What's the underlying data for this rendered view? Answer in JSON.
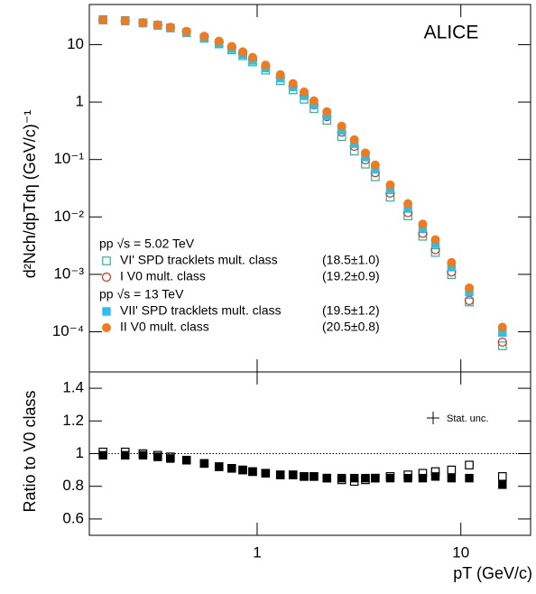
{
  "chart_data": [
    {
      "type": "scatter",
      "annotation": "ALICE",
      "y_label": "d²Nch/dpTdη (GeV/c)⁻¹",
      "xscale": "log",
      "yscale": "log",
      "xlim": [
        0.15,
        22
      ],
      "ylim": [
        2e-05,
        50
      ],
      "yticks": [
        10,
        1,
        {
          "value": 0.1,
          "label": "10⁻¹"
        },
        {
          "value": 0.01,
          "label": "10⁻²"
        },
        {
          "value": 0.001,
          "label": "10⁻³"
        },
        {
          "value": 0.0001,
          "label": "10⁻⁴"
        }
      ],
      "legend_groups": [
        "pp √s = 5.02 TeV",
        "pp √s = 13 TeV"
      ],
      "x": [
        0.175,
        0.225,
        0.275,
        0.325,
        0.375,
        0.45,
        0.55,
        0.65,
        0.75,
        0.85,
        0.95,
        1.1,
        1.3,
        1.5,
        1.7,
        1.9,
        2.2,
        2.6,
        3.0,
        3.4,
        3.8,
        4.5,
        5.5,
        6.5,
        7.5,
        9,
        11,
        16
      ],
      "series": [
        {
          "name": "VI' SPD tracklets mult. class",
          "multiplicity": "(18.5±1.0)",
          "color": "#26b894",
          "marker": "open-square",
          "values": [
            27.3,
            26.3,
            24,
            21.8,
            19.6,
            16.1,
            12.9,
            10.3,
            8.1,
            6.4,
            5.0,
            3.6,
            2.35,
            1.63,
            1.12,
            0.77,
            0.48,
            0.25,
            0.14,
            0.083,
            0.05,
            0.022,
            0.0104,
            0.0046,
            0.0024,
            0.00099,
            0.00033,
            5.7e-05
          ]
        },
        {
          "name": "I V0 mult. class",
          "multiplicity": "(19.2±0.9)",
          "color": "#e8261a",
          "marker": "open-circle",
          "values": [
            27,
            26,
            24,
            22,
            20,
            16.8,
            13.7,
            11.2,
            8.9,
            7.1,
            5.6,
            4.1,
            2.7,
            1.87,
            1.3,
            0.89,
            0.56,
            0.3,
            0.17,
            0.099,
            0.059,
            0.026,
            0.0119,
            0.0052,
            0.0027,
            0.0011,
            0.00035,
            6.6e-05
          ]
        },
        {
          "name": "VII' SPD tracklets mult. class",
          "multiplicity": "(19.5±1.2)",
          "color": "#29c0ee",
          "marker": "filled-square",
          "values": [
            26.7,
            25.7,
            23.8,
            21.6,
            19.4,
            16.3,
            13.2,
            10.6,
            8.5,
            6.75,
            5.3,
            3.9,
            2.6,
            1.83,
            1.29,
            0.9,
            0.58,
            0.32,
            0.19,
            0.11,
            0.068,
            0.031,
            0.0145,
            0.0064,
            0.0034,
            0.00136,
            0.00049,
            9.7e-05
          ]
        },
        {
          "name": "II V0 mult. class",
          "multiplicity": "(20.5±0.8)",
          "color": "#f07a1e",
          "marker": "filled-circle",
          "values": [
            27,
            26,
            24,
            22,
            20,
            17,
            14,
            11.5,
            9.3,
            7.5,
            6.0,
            4.4,
            3.0,
            2.1,
            1.5,
            1.05,
            0.68,
            0.38,
            0.22,
            0.13,
            0.08,
            0.036,
            0.017,
            0.0075,
            0.004,
            0.0016,
            0.00058,
            0.00012
          ]
        }
      ]
    },
    {
      "type": "scatter",
      "y_label": "Ratio to V0 class",
      "x_label": "pT (GeV/c)",
      "annotation": "Stat. unc.",
      "xscale": "log",
      "xlim": [
        0.15,
        22
      ],
      "ylim": [
        0.5,
        1.5
      ],
      "xticks": [
        1,
        10
      ],
      "yticks": [
        0.6,
        0.8,
        1,
        1.2,
        1.4
      ],
      "reference_line": 1,
      "x": [
        0.175,
        0.225,
        0.275,
        0.325,
        0.375,
        0.45,
        0.55,
        0.65,
        0.75,
        0.85,
        0.95,
        1.1,
        1.3,
        1.5,
        1.7,
        1.9,
        2.2,
        2.6,
        3.0,
        3.4,
        3.8,
        4.5,
        5.5,
        6.5,
        7.5,
        9,
        11,
        16
      ],
      "series": [
        {
          "color": "#000000",
          "marker": "open-square",
          "values": [
            1.01,
            1.01,
            1.0,
            0.99,
            0.98,
            0.96,
            0.94,
            0.92,
            0.91,
            0.9,
            0.89,
            0.88,
            0.87,
            0.87,
            0.86,
            0.86,
            0.85,
            0.84,
            0.83,
            0.84,
            0.85,
            0.86,
            0.87,
            0.88,
            0.89,
            0.9,
            0.93,
            0.86
          ]
        },
        {
          "color": "#000000",
          "marker": "filled-square",
          "values": [
            0.99,
            0.99,
            0.99,
            0.98,
            0.97,
            0.96,
            0.94,
            0.92,
            0.91,
            0.9,
            0.89,
            0.88,
            0.87,
            0.87,
            0.86,
            0.86,
            0.85,
            0.85,
            0.85,
            0.85,
            0.85,
            0.85,
            0.85,
            0.85,
            0.86,
            0.85,
            0.85,
            0.81
          ]
        }
      ]
    }
  ]
}
